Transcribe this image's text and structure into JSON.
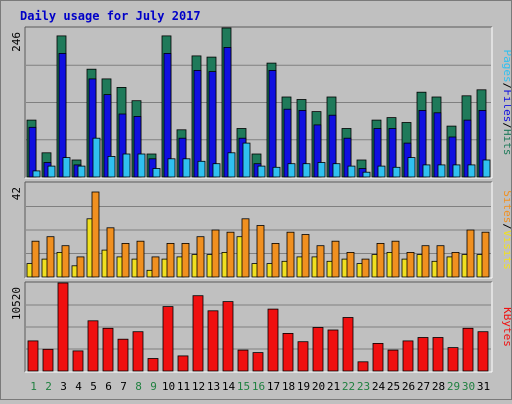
{
  "title": "Daily usage for July 2017",
  "colors": {
    "hits": "#1f7a5a",
    "files": "#1010e0",
    "pages": "#30c0f0",
    "visits": "#f0e020",
    "sites": "#f09020",
    "kbytes": "#f01010",
    "weekday_label": "#000000",
    "weekend_label": "#208040"
  },
  "chart_data": [
    {
      "type": "bar",
      "panel": "hits-files-pages",
      "ymax_label": "246",
      "ylim": [
        0,
        246
      ],
      "right_labels": [
        "Pages",
        "/",
        "Files",
        "/",
        "Hits"
      ],
      "categories": [
        "1",
        "2",
        "3",
        "4",
        "5",
        "6",
        "7",
        "8",
        "9",
        "10",
        "11",
        "12",
        "13",
        "14",
        "15",
        "16",
        "17",
        "18",
        "19",
        "20",
        "21",
        "22",
        "23",
        "24",
        "25",
        "26",
        "27",
        "28",
        "29",
        "30",
        "31"
      ],
      "weekend_days": [
        "1",
        "2",
        "8",
        "9",
        "15",
        "16",
        "22",
        "23",
        "29",
        "30"
      ],
      "series": [
        {
          "name": "Hits",
          "values": [
            94,
            40,
            233,
            28,
            178,
            162,
            148,
            126,
            38,
            233,
            78,
            200,
            198,
            246,
            80,
            38,
            188,
            132,
            128,
            108,
            132,
            80,
            28,
            94,
            98,
            90,
            140,
            132,
            84,
            134,
            144
          ]
        },
        {
          "name": "Files",
          "values": [
            82,
            24,
            204,
            20,
            162,
            136,
            104,
            100,
            30,
            204,
            64,
            176,
            174,
            214,
            64,
            22,
            176,
            112,
            110,
            86,
            102,
            64,
            14,
            80,
            80,
            56,
            110,
            106,
            66,
            94,
            110
          ]
        },
        {
          "name": "Pages",
          "values": [
            10,
            18,
            32,
            18,
            64,
            34,
            38,
            38,
            14,
            30,
            30,
            26,
            22,
            40,
            56,
            18,
            16,
            22,
            22,
            24,
            22,
            18,
            8,
            18,
            16,
            32,
            20,
            20,
            20,
            20,
            28
          ]
        }
      ]
    },
    {
      "type": "bar",
      "panel": "visits-sites",
      "ymax_label": "42",
      "ylim": [
        0,
        42
      ],
      "right_labels": [
        "Sites",
        "/",
        "Visits"
      ],
      "categories": [
        "1",
        "2",
        "3",
        "4",
        "5",
        "6",
        "7",
        "8",
        "9",
        "10",
        "11",
        "12",
        "13",
        "14",
        "15",
        "16",
        "17",
        "18",
        "19",
        "20",
        "21",
        "22",
        "23",
        "24",
        "25",
        "26",
        "27",
        "28",
        "29",
        "30",
        "31"
      ],
      "weekend_days": [
        "1",
        "2",
        "8",
        "9",
        "15",
        "16",
        "22",
        "23",
        "29",
        "30"
      ],
      "series": [
        {
          "name": "Visits",
          "values": [
            6,
            8,
            11,
            5,
            26,
            12,
            9,
            8,
            3,
            8,
            9,
            10,
            10,
            11,
            18,
            6,
            6,
            7,
            9,
            9,
            7,
            8,
            6,
            10,
            11,
            8,
            10,
            7,
            9,
            10,
            10
          ]
        },
        {
          "name": "Sites",
          "values": [
            16,
            18,
            14,
            9,
            38,
            22,
            15,
            16,
            9,
            15,
            15,
            18,
            21,
            20,
            26,
            23,
            15,
            20,
            19,
            14,
            16,
            11,
            8,
            15,
            16,
            11,
            14,
            14,
            11,
            21,
            20
          ]
        }
      ]
    },
    {
      "type": "bar",
      "panel": "kbytes",
      "ymax_label": "10520",
      "ylim": [
        0,
        10520
      ],
      "right_labels": [
        "KBytes"
      ],
      "categories": [
        "1",
        "2",
        "3",
        "4",
        "5",
        "6",
        "7",
        "8",
        "9",
        "10",
        "11",
        "12",
        "13",
        "14",
        "15",
        "16",
        "17",
        "18",
        "19",
        "20",
        "21",
        "22",
        "23",
        "24",
        "25",
        "26",
        "27",
        "28",
        "29",
        "30",
        "31"
      ],
      "weekend_days": [
        "1",
        "2",
        "8",
        "9",
        "15",
        "16",
        "22",
        "23",
        "29",
        "30"
      ],
      "series": [
        {
          "name": "KBytes",
          "values": [
            3600,
            2600,
            10520,
            2400,
            6000,
            5100,
            3800,
            4700,
            1500,
            7700,
            1800,
            9000,
            7200,
            8300,
            2500,
            2200,
            7400,
            4500,
            3500,
            5200,
            4900,
            6400,
            1100,
            3300,
            2500,
            3600,
            4000,
            4000,
            2800,
            5100,
            4700
          ]
        }
      ]
    }
  ]
}
